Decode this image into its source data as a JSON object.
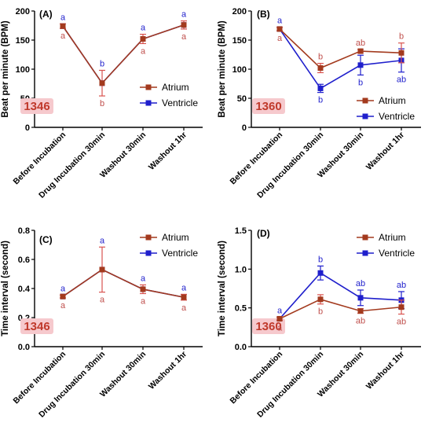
{
  "colors": {
    "atrium": "#a33a1e",
    "ventricle": "#1f1fcc",
    "atrium_letter": "#c0504d",
    "ventricle_letter": "#1f1fcc",
    "sample_bg": "#f6c9cd",
    "sample_text": "#c0392b",
    "error_bar_atrium": "#d9534f"
  },
  "chart_data": [
    {
      "type": "line",
      "panel": "(A)",
      "sample_label": "1346",
      "ylabel": "Beat per minute (BPM)",
      "ylim": [
        0,
        200
      ],
      "yticks": [
        "0",
        "50",
        "100",
        "150",
        "200"
      ],
      "categories": [
        "Before Incubation",
        "Drug Incubation 30min",
        "Washout 30min",
        "Washout 1hr"
      ],
      "legend_position": "lower-right",
      "series": [
        {
          "name": "Atrium",
          "color": "atrium",
          "values": [
            174,
            76,
            152,
            176
          ],
          "errors": [
            4,
            22,
            8,
            7
          ],
          "letters": [
            "a",
            "b",
            "a",
            "a"
          ]
        },
        {
          "name": "Ventricle",
          "color": "ventricle",
          "values": [
            174,
            76,
            152,
            176
          ],
          "errors": [
            0,
            0,
            0,
            0
          ],
          "letters": [
            "a",
            "b",
            "a",
            "a"
          ]
        }
      ]
    },
    {
      "type": "line",
      "panel": "(B)",
      "sample_label": "1360",
      "ylabel": "Beat per minute (BPM)",
      "ylim": [
        0,
        200
      ],
      "yticks": [
        "0",
        "50",
        "100",
        "150",
        "200"
      ],
      "categories": [
        "Before Incubation",
        "Drug Incubation 30min",
        "Washout 30min",
        "Washout 1hr"
      ],
      "legend_position": "lower-right",
      "series": [
        {
          "name": "Atrium",
          "color": "atrium",
          "values": [
            169,
            102,
            131,
            128
          ],
          "errors": [
            3,
            8,
            3,
            17
          ],
          "letters": [
            "a",
            "b",
            "ab",
            "b"
          ]
        },
        {
          "name": "Ventricle",
          "color": "ventricle",
          "values": [
            169,
            67,
            107,
            115
          ],
          "errors": [
            3,
            7,
            17,
            20
          ],
          "letters": [
            "a",
            "b",
            "b",
            "ab"
          ]
        }
      ]
    },
    {
      "type": "line",
      "panel": "(C)",
      "sample_label": "1346",
      "ylabel": "Time interval (second)",
      "ylim": [
        0,
        0.8
      ],
      "yticks": [
        "0.0",
        "0.2",
        "0.4",
        "0.6",
        "0.8"
      ],
      "categories": [
        "Before Incubation",
        "Drug Incubation 30min",
        "Washout 30min",
        "Washout 1hr"
      ],
      "legend_position": "top-right",
      "series": [
        {
          "name": "Atrium",
          "color": "atrium",
          "values": [
            0.345,
            0.53,
            0.395,
            0.34
          ],
          "errors": [
            0.01,
            0.155,
            0.03,
            0.02
          ],
          "letters": [
            "a",
            "a",
            "a",
            "a"
          ]
        },
        {
          "name": "Ventricle",
          "color": "ventricle",
          "values": [
            0.345,
            0.53,
            0.395,
            0.34
          ],
          "errors": [
            0,
            0,
            0,
            0
          ],
          "letters": [
            "a",
            "a",
            "a",
            "a"
          ]
        }
      ]
    },
    {
      "type": "line",
      "panel": "(D)",
      "sample_label": "1360",
      "ylabel": "Time interval (second)",
      "ylim": [
        0,
        1.5
      ],
      "yticks": [
        "0.0",
        "0.5",
        "1.0",
        "1.5"
      ],
      "categories": [
        "Before Incubation",
        "Drug Incubation 30min",
        "Washout 30min",
        "Washout 1hr"
      ],
      "legend_position": "top-right",
      "series": [
        {
          "name": "Atrium",
          "color": "atrium",
          "values": [
            0.36,
            0.61,
            0.46,
            0.51
          ],
          "errors": [
            0.02,
            0.06,
            0.03,
            0.09
          ],
          "letters": [
            "a",
            "b",
            "ab",
            "ab"
          ]
        },
        {
          "name": "Ventricle",
          "color": "ventricle",
          "values": [
            0.36,
            0.95,
            0.63,
            0.6
          ],
          "errors": [
            0.02,
            0.09,
            0.1,
            0.11
          ],
          "letters": [
            "a",
            "b",
            "ab",
            "ab"
          ]
        }
      ]
    }
  ]
}
